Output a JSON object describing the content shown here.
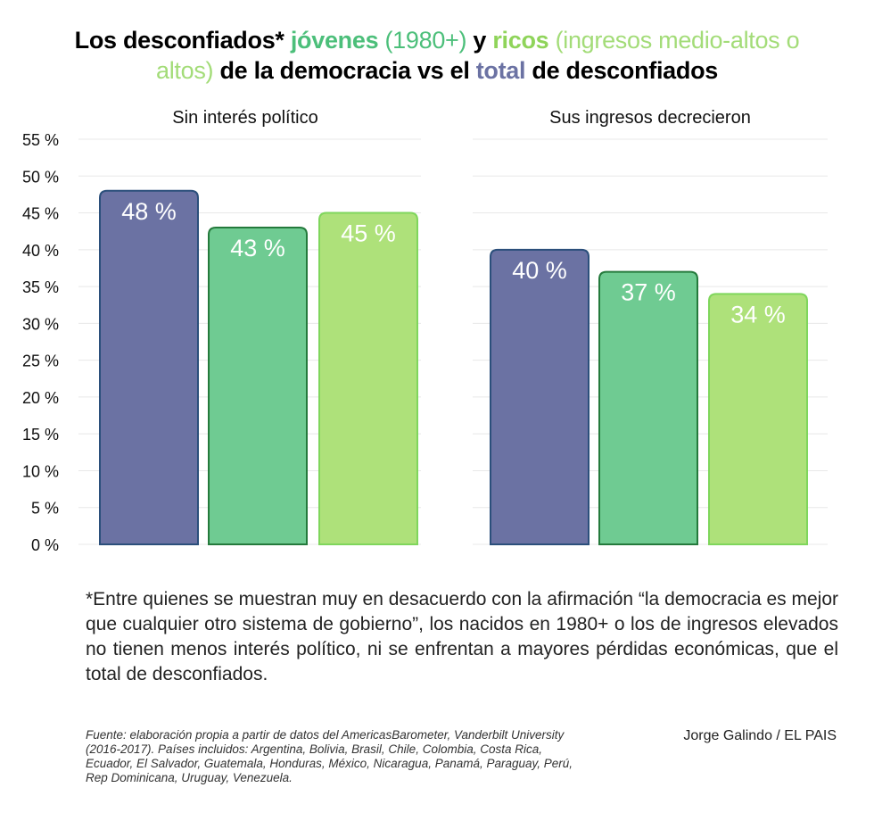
{
  "title": {
    "parts": [
      {
        "text": "Los desconfiados* ",
        "color": "#000000",
        "weight": "bold"
      },
      {
        "text": "jóvenes",
        "color": "#4cbf7a",
        "weight": "bold"
      },
      {
        "text": " (1980+) ",
        "color": "#4cbf7a",
        "weight": "normal"
      },
      {
        "text": "y ",
        "color": "#000000",
        "weight": "bold"
      },
      {
        "text": "ricos",
        "color": "#8fd45a",
        "weight": "bold"
      },
      {
        "text": " (ingresos medio-altos o altos) ",
        "color": "#a3dc78",
        "weight": "normal"
      },
      {
        "text": "de la democracia vs el ",
        "color": "#000000",
        "weight": "bold"
      },
      {
        "text": "total",
        "color": "#6b72a3",
        "weight": "bold"
      },
      {
        "text": " de desconfiados",
        "color": "#000000",
        "weight": "bold"
      }
    ]
  },
  "chart_data": {
    "type": "bar",
    "ylim": [
      0,
      55
    ],
    "yticks": [
      "0 %",
      "5 %",
      "10 %",
      "15 %",
      "20 %",
      "25 %",
      "30 %",
      "35 %",
      "40 %",
      "45 %",
      "50 %",
      "55 %"
    ],
    "grid": true,
    "series_colors": [
      {
        "fill": "#6b72a3",
        "stroke": "#2b4f7b"
      },
      {
        "fill": "#6fcb92",
        "stroke": "#247a3c"
      },
      {
        "fill": "#aee17a",
        "stroke": "#7fd65c"
      }
    ],
    "panels": [
      {
        "title": "Sin interés político",
        "values": [
          48,
          43,
          45
        ],
        "labels": [
          "48 %",
          "43 %",
          "45 %"
        ]
      },
      {
        "title": "Sus ingresos decrecieron",
        "values": [
          40,
          37,
          34
        ],
        "labels": [
          "40 %",
          "37 %",
          "34 %"
        ]
      }
    ]
  },
  "note": "*Entre quienes se muestran muy en desacuerdo con la afirmación “la democracia es mejor que cualquier otro sistema de gobierno”, los nacidos en 1980+ o los de ingresos elevados no tienen menos interés político, ni se enfrentan a mayores pérdidas económicas, que el total de desconfiados.",
  "source": "Fuente: elaboración propia a partir de datos del AmericasBarometer, Vanderbilt University (2016-2017). Países incluidos: Argentina, Bolivia, Brasil, Chile, Colombia, Costa Rica, Ecuador, El Salvador, Guatemala, Honduras, México, Nicaragua, Panamá, Paraguay, Perú, Rep Dominicana, Uruguay, Venezuela.",
  "credit": "Jorge Galindo / EL PAIS"
}
